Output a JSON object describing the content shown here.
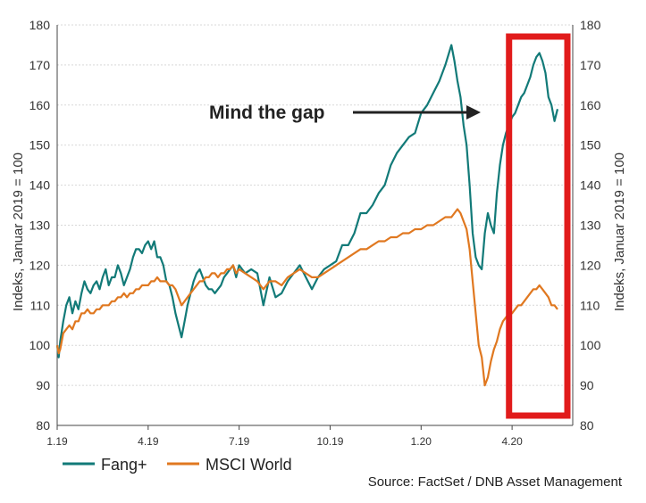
{
  "colors": {
    "fang": "#127a78",
    "msci": "#e07820",
    "highlight": "#e11b1b",
    "arrow": "#222222",
    "axis": "#444444"
  },
  "annotation": "Mind the gap",
  "source": "Source: FactSet / DNB Asset Management",
  "chart_data": {
    "type": "line",
    "title": "",
    "ylabel_left": "Indeks, Januar 2019 = 100",
    "ylabel_right": "Indeks, Januar 2019 = 100",
    "ylim": [
      80,
      180
    ],
    "yticks": [
      "80",
      "90",
      "100",
      "110",
      "120",
      "130",
      "140",
      "150",
      "160",
      "170",
      "180"
    ],
    "xlim": [
      0,
      17
    ],
    "xticks": [
      {
        "label": "1.19",
        "x": 0
      },
      {
        "label": "4.19",
        "x": 3
      },
      {
        "label": "7.19",
        "x": 6
      },
      {
        "label": "10.19",
        "x": 9
      },
      {
        "label": "1.20",
        "x": 12
      },
      {
        "label": "4.20",
        "x": 15
      }
    ],
    "x_unit": "months since Jan 2019",
    "grid": "horizontal",
    "legend": "bottom-left",
    "highlight_x": [
      14.9,
      17.0
    ],
    "highlight_y": [
      80,
      180
    ],
    "series": [
      {
        "name": "Fang+",
        "x": [
          0,
          0.05,
          0.1,
          0.2,
          0.3,
          0.4,
          0.5,
          0.6,
          0.7,
          0.8,
          0.9,
          1.0,
          1.1,
          1.2,
          1.3,
          1.4,
          1.5,
          1.6,
          1.7,
          1.8,
          1.9,
          2.0,
          2.1,
          2.2,
          2.3,
          2.4,
          2.5,
          2.6,
          2.7,
          2.8,
          2.9,
          3.0,
          3.1,
          3.2,
          3.3,
          3.4,
          3.5,
          3.6,
          3.7,
          3.8,
          3.9,
          4.0,
          4.1,
          4.2,
          4.3,
          4.4,
          4.5,
          4.6,
          4.7,
          4.8,
          4.9,
          5.0,
          5.1,
          5.2,
          5.3,
          5.4,
          5.5,
          5.6,
          5.7,
          5.8,
          5.9,
          6.0,
          6.2,
          6.4,
          6.6,
          6.8,
          7.0,
          7.2,
          7.4,
          7.6,
          7.8,
          8.0,
          8.2,
          8.4,
          8.6,
          8.8,
          9.0,
          9.2,
          9.4,
          9.6,
          9.8,
          10.0,
          10.2,
          10.4,
          10.6,
          10.8,
          11.0,
          11.2,
          11.4,
          11.6,
          11.8,
          12.0,
          12.2,
          12.4,
          12.6,
          12.8,
          13.0,
          13.1,
          13.2,
          13.3,
          13.4,
          13.5,
          13.6,
          13.7,
          13.8,
          13.9,
          14.0,
          14.1,
          14.2,
          14.3,
          14.4,
          14.5,
          14.6,
          14.7,
          14.8,
          14.9,
          15.0,
          15.1,
          15.2,
          15.3,
          15.4,
          15.5,
          15.6,
          15.7,
          15.8,
          15.9,
          16.0,
          16.1,
          16.2,
          16.3,
          16.4,
          16.5
        ],
        "values": [
          100,
          97,
          101,
          106,
          110,
          112,
          108,
          111,
          109,
          113,
          116,
          114,
          113,
          115,
          116,
          114,
          117,
          119,
          115,
          117,
          117,
          120,
          118,
          115,
          117,
          119,
          122,
          124,
          124,
          123,
          125,
          126,
          124,
          126,
          122,
          122,
          120,
          116,
          115,
          112,
          108,
          105,
          102,
          106,
          110,
          113,
          116,
          118,
          119,
          117,
          115,
          114,
          114,
          113,
          114,
          115,
          117,
          118,
          119,
          120,
          117,
          120,
          118,
          119,
          118,
          110,
          117,
          112,
          113,
          116,
          118,
          120,
          117,
          114,
          117,
          119,
          120,
          121,
          125,
          125,
          128,
          133,
          133,
          135,
          138,
          140,
          145,
          148,
          150,
          152,
          153,
          158,
          160,
          163,
          166,
          170,
          175,
          171,
          166,
          162,
          155,
          150,
          140,
          128,
          122,
          120,
          119,
          128,
          133,
          130,
          128,
          138,
          145,
          150,
          153,
          155,
          157,
          158,
          160,
          162,
          163,
          165,
          167,
          170,
          172,
          173,
          171,
          168,
          162,
          160,
          156,
          159
        ]
      },
      {
        "name": "MSCI World",
        "x": [
          0,
          0.05,
          0.1,
          0.2,
          0.3,
          0.4,
          0.5,
          0.6,
          0.7,
          0.8,
          0.9,
          1.0,
          1.1,
          1.2,
          1.3,
          1.4,
          1.5,
          1.6,
          1.7,
          1.8,
          1.9,
          2.0,
          2.1,
          2.2,
          2.3,
          2.4,
          2.5,
          2.6,
          2.7,
          2.8,
          2.9,
          3.0,
          3.1,
          3.2,
          3.3,
          3.4,
          3.5,
          3.6,
          3.7,
          3.8,
          3.9,
          4.0,
          4.1,
          4.2,
          4.3,
          4.4,
          4.5,
          4.6,
          4.7,
          4.8,
          4.9,
          5.0,
          5.1,
          5.2,
          5.3,
          5.4,
          5.5,
          5.6,
          5.7,
          5.8,
          5.9,
          6.0,
          6.2,
          6.4,
          6.6,
          6.8,
          7.0,
          7.2,
          7.4,
          7.6,
          7.8,
          8.0,
          8.2,
          8.4,
          8.6,
          8.8,
          9.0,
          9.2,
          9.4,
          9.6,
          9.8,
          10.0,
          10.2,
          10.4,
          10.6,
          10.8,
          11.0,
          11.2,
          11.4,
          11.6,
          11.8,
          12.0,
          12.2,
          12.4,
          12.6,
          12.8,
          13.0,
          13.1,
          13.2,
          13.3,
          13.4,
          13.5,
          13.6,
          13.7,
          13.8,
          13.9,
          14.0,
          14.1,
          14.2,
          14.3,
          14.4,
          14.5,
          14.6,
          14.7,
          14.8,
          14.9,
          15.0,
          15.1,
          15.2,
          15.3,
          15.4,
          15.5,
          15.6,
          15.7,
          15.8,
          15.9,
          16.0,
          16.1,
          16.2,
          16.3,
          16.4,
          16.5
        ],
        "values": [
          100,
          98,
          99,
          103,
          104,
          105,
          104,
          106,
          106,
          108,
          108,
          109,
          108,
          108,
          109,
          109,
          110,
          110,
          110,
          111,
          111,
          112,
          112,
          113,
          112,
          113,
          113,
          114,
          114,
          115,
          115,
          115,
          116,
          116,
          117,
          116,
          116,
          116,
          115,
          115,
          114,
          112,
          110,
          111,
          112,
          113,
          114,
          115,
          116,
          116,
          117,
          117,
          118,
          118,
          117,
          118,
          118,
          119,
          119,
          120,
          118,
          119,
          118,
          117,
          116,
          114,
          116,
          116,
          115,
          117,
          118,
          119,
          118,
          117,
          117,
          118,
          119,
          120,
          121,
          122,
          123,
          124,
          124,
          125,
          126,
          126,
          127,
          127,
          128,
          128,
          129,
          129,
          130,
          130,
          131,
          132,
          132,
          133,
          134,
          133,
          131,
          129,
          124,
          116,
          108,
          100,
          97,
          90,
          92,
          96,
          99,
          101,
          104,
          106,
          107,
          108,
          108,
          109,
          110,
          110,
          111,
          112,
          113,
          114,
          114,
          115,
          114,
          113,
          112,
          110,
          110,
          109
        ]
      }
    ]
  }
}
